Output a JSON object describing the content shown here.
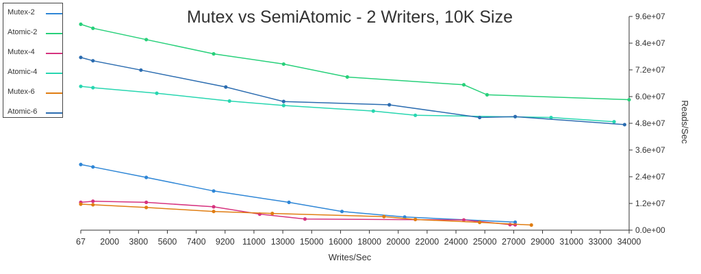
{
  "chart_data": {
    "type": "line",
    "title": "Mutex vs SemiAtomic - 2 Writers, 10K Size",
    "xlabel": "Writes/Sec",
    "ylabel": "Reads/Sec",
    "xlim": [
      67,
      34000
    ],
    "ylim": [
      0,
      96000000
    ],
    "x_ticks": [
      "67",
      "2000",
      "3800",
      "5600",
      "7400",
      "9200",
      "11000",
      "13000",
      "15000",
      "16000",
      "18000",
      "20000",
      "22000",
      "24000",
      "25000",
      "27000",
      "29000",
      "31000",
      "33000",
      "34000"
    ],
    "y_ticks": [
      "0.0e+00",
      "1.2e+07",
      "2.4e+07",
      "3.6e+07",
      "4.8e+07",
      "6.0e+07",
      "7.2e+07",
      "8.4e+07",
      "9.6e+07"
    ],
    "legend_position": "top-left",
    "grid": false,
    "series": [
      {
        "name": "Mutex-2",
        "color": "#2e86d6",
        "points": [
          [
            67,
            29500000
          ],
          [
            820,
            28400000
          ],
          [
            4120,
            23700000
          ],
          [
            8290,
            17600000
          ],
          [
            12950,
            12500000
          ],
          [
            16230,
            8400000
          ],
          [
            20110,
            5900000
          ],
          [
            26950,
            3600000
          ]
        ]
      },
      {
        "name": "Atomic-2",
        "color": "#27d07a",
        "points": [
          [
            67,
            92500000
          ],
          [
            820,
            90700000
          ],
          [
            4120,
            85600000
          ],
          [
            8290,
            79200000
          ],
          [
            12620,
            74600000
          ],
          [
            16560,
            68800000
          ],
          [
            23770,
            65300000
          ],
          [
            25210,
            60800000
          ],
          [
            34000,
            58600000
          ]
        ]
      },
      {
        "name": "Mutex-4",
        "color": "#d6337f",
        "points": [
          [
            67,
            12500000
          ],
          [
            820,
            13000000
          ],
          [
            4120,
            12500000
          ],
          [
            8290,
            10500000
          ],
          [
            11140,
            7200000
          ],
          [
            13940,
            5000000
          ],
          [
            23770,
            4600000
          ],
          [
            26630,
            2500000
          ],
          [
            26950,
            2400000
          ]
        ]
      },
      {
        "name": "Atomic-4",
        "color": "#27d6b0",
        "points": [
          [
            67,
            64600000
          ],
          [
            820,
            64000000
          ],
          [
            4770,
            61500000
          ],
          [
            9270,
            58000000
          ],
          [
            12620,
            56000000
          ],
          [
            18170,
            53500000
          ],
          [
            20770,
            51600000
          ],
          [
            29170,
            50600000
          ],
          [
            33070,
            48700000
          ]
        ]
      },
      {
        "name": "Mutex-6",
        "color": "#e07d12",
        "points": [
          [
            67,
            11700000
          ],
          [
            820,
            11400000
          ],
          [
            4120,
            10200000
          ],
          [
            8290,
            8400000
          ],
          [
            11920,
            7500000
          ],
          [
            18830,
            6100000
          ],
          [
            20770,
            4800000
          ],
          [
            24750,
            3500000
          ],
          [
            27950,
            2300000
          ]
        ]
      },
      {
        "name": "Atomic-6",
        "color": "#2b6cb0",
        "points": [
          [
            67,
            77600000
          ],
          [
            820,
            76100000
          ],
          [
            3790,
            71900000
          ],
          [
            9040,
            64300000
          ],
          [
            12620,
            57800000
          ],
          [
            19160,
            56300000
          ],
          [
            24750,
            50600000
          ],
          [
            26950,
            51000000
          ],
          [
            33720,
            47400000
          ]
        ]
      }
    ]
  }
}
